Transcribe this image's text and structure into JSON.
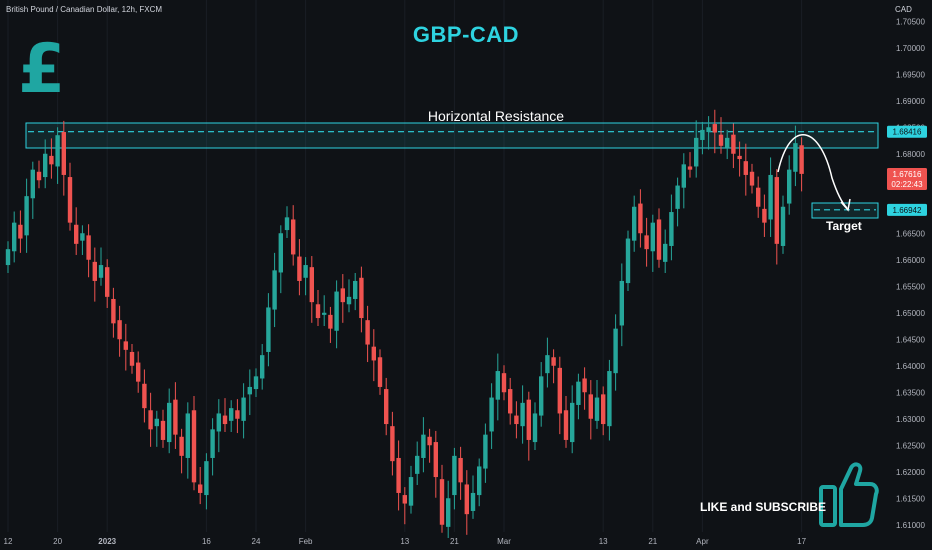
{
  "header": {
    "symbol_label": "British Pound / Canadian Dollar, 12h, FXCM",
    "currency": "CAD"
  },
  "annotations": {
    "title": "GBP-CAD",
    "resistance_label": "Horizontal Resistance",
    "target_label": "Target",
    "cta": "LIKE and SUBSCRIBE"
  },
  "icons": {
    "logo": "pound-sign-icon",
    "cta": "thumbs-up-icon"
  },
  "colors": {
    "background": "#0f1216",
    "up": "#26a69a",
    "down": "#ef5350",
    "accent": "#2ed3e0",
    "zone_fill": "rgba(46,211,224,0.10)",
    "logo": "#1fa6a2"
  },
  "price_tags": {
    "resistance": "1.68416",
    "target": "1.66942",
    "current_price": "1.67616",
    "countdown": "02:22:43"
  },
  "chart_data": {
    "type": "candlestick",
    "title": "GBP-CAD",
    "y_range": [
      1.6075,
      1.7075
    ],
    "y_ticks": [
      "1.70500",
      "1.70000",
      "1.69500",
      "1.69000",
      "1.68500",
      "1.68000",
      "1.67500",
      "1.67000",
      "1.66500",
      "1.66000",
      "1.65500",
      "1.65000",
      "1.64500",
      "1.64000",
      "1.63500",
      "1.63000",
      "1.62500",
      "1.62000",
      "1.61500",
      "1.61000"
    ],
    "x_ticks": [
      "12",
      "20",
      "2023",
      "16",
      "24",
      "Feb",
      "13",
      "21",
      "Mar",
      "13",
      "21",
      "Apr",
      "17"
    ],
    "x_tick_positions": [
      0,
      8,
      16,
      32,
      40,
      48,
      64,
      72,
      80,
      96,
      104,
      112,
      128
    ],
    "resistance_level": 1.68416,
    "target_level": 1.66942,
    "closes": [
      1.662,
      1.667,
      1.664,
      1.672,
      1.677,
      1.675,
      1.68,
      1.678,
      1.6835,
      1.676,
      1.667,
      1.663,
      1.665,
      1.66,
      1.656,
      1.659,
      1.653,
      1.648,
      1.645,
      1.643,
      1.64,
      1.637,
      1.632,
      1.628,
      1.63,
      1.626,
      1.633,
      1.627,
      1.623,
      1.631,
      1.618,
      1.616,
      1.622,
      1.628,
      1.631,
      1.629,
      1.632,
      1.63,
      1.634,
      1.636,
      1.638,
      1.642,
      1.651,
      1.658,
      1.665,
      1.668,
      1.661,
      1.656,
      1.659,
      1.652,
      1.649,
      1.65,
      1.647,
      1.654,
      1.652,
      1.653,
      1.656,
      1.649,
      1.644,
      1.641,
      1.636,
      1.629,
      1.622,
      1.616,
      1.614,
      1.619,
      1.623,
      1.627,
      1.625,
      1.619,
      1.61,
      1.615,
      1.623,
      1.618,
      1.612,
      1.616,
      1.621,
      1.627,
      1.634,
      1.639,
      1.635,
      1.631,
      1.629,
      1.633,
      1.626,
      1.631,
      1.638,
      1.642,
      1.64,
      1.631,
      1.626,
      1.633,
      1.637,
      1.635,
      1.63,
      1.634,
      1.629,
      1.639,
      1.647,
      1.656,
      1.664,
      1.67,
      1.665,
      1.662,
      1.667,
      1.66,
      1.663,
      1.669,
      1.674,
      1.678,
      1.677,
      1.683,
      1.6845,
      1.685,
      1.684,
      1.6815,
      1.683,
      1.68,
      1.679,
      1.676,
      1.674,
      1.67,
      1.667,
      1.676,
      1.663,
      1.67,
      1.677,
      1.682,
      1.6762
    ]
  }
}
